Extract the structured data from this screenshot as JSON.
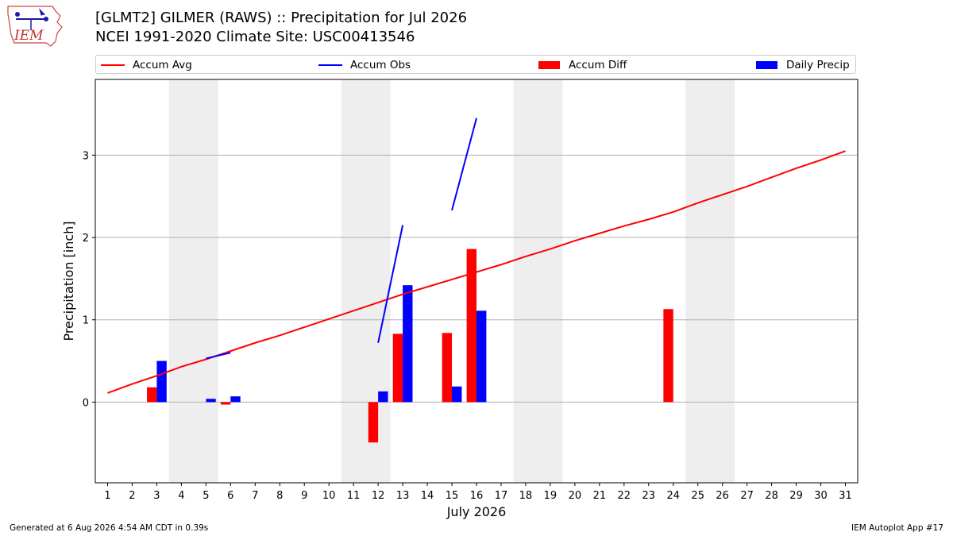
{
  "header": {
    "title_line1": "[GLMT2] GILMER (RAWS) :: Precipitation for Jul 2026",
    "title_line2": "NCEI 1991-2020 Climate Site: USC00413546",
    "logo_text": "IEM"
  },
  "legend": {
    "accum_avg": "Accum Avg",
    "accum_obs": "Accum Obs",
    "accum_diff": "Accum Diff",
    "daily_precip": "Daily Precip"
  },
  "footer": {
    "generated": "Generated at 6 Aug 2026 4:54 AM CDT in 0.39s",
    "app": "IEM Autoplot App #17"
  },
  "colors": {
    "accum_avg": "#ff0000",
    "accum_obs": "#0000ff",
    "accum_diff": "#ff0000",
    "daily_precip": "#0000ff",
    "weekend_shade": "#eeeeee",
    "grid": "#b0b0b0"
  },
  "chart_data": {
    "type": "bar",
    "xlabel": "July 2026",
    "ylabel": "Precipitation [inch]",
    "xlim": [
      0.5,
      31.5
    ],
    "ylim": [
      -0.98,
      3.92
    ],
    "x_ticks": [
      1,
      2,
      3,
      4,
      5,
      6,
      7,
      8,
      9,
      10,
      11,
      12,
      13,
      14,
      15,
      16,
      17,
      18,
      19,
      20,
      21,
      22,
      23,
      24,
      25,
      26,
      27,
      28,
      29,
      30,
      31
    ],
    "y_ticks": [
      0,
      1,
      2,
      3
    ],
    "grid": "horizontal",
    "legend_position": "top",
    "weekend_shading": [
      [
        4,
        5
      ],
      [
        11,
        12
      ],
      [
        18,
        19
      ],
      [
        25,
        26
      ]
    ],
    "series": [
      {
        "name": "Accum Avg",
        "type": "line",
        "x": [
          1,
          2,
          3,
          4,
          5,
          6,
          7,
          8,
          9,
          10,
          11,
          12,
          13,
          14,
          15,
          16,
          17,
          18,
          19,
          20,
          21,
          22,
          23,
          24,
          25,
          26,
          27,
          28,
          29,
          30,
          31
        ],
        "values": [
          0.11,
          0.22,
          0.32,
          0.43,
          0.52,
          0.62,
          0.72,
          0.81,
          0.91,
          1.01,
          1.11,
          1.21,
          1.31,
          1.4,
          1.49,
          1.58,
          1.67,
          1.77,
          1.86,
          1.96,
          2.05,
          2.14,
          2.22,
          2.31,
          2.42,
          2.52,
          2.62,
          2.73,
          2.84,
          2.94,
          3.05
        ]
      },
      {
        "name": "Accum Obs",
        "type": "line",
        "segments": [
          {
            "x": [
              5,
              6
            ],
            "values": [
              0.53,
              0.6
            ]
          },
          {
            "x": [
              12,
              13
            ],
            "values": [
              0.72,
              2.15
            ]
          },
          {
            "x": [
              15,
              16
            ],
            "values": [
              2.33,
              3.45
            ]
          }
        ]
      },
      {
        "name": "Accum Diff",
        "type": "bar",
        "x": [
          3,
          6,
          12,
          13,
          15,
          16,
          24
        ],
        "values": [
          0.18,
          -0.03,
          -0.49,
          0.83,
          0.84,
          1.86,
          1.13
        ]
      },
      {
        "name": "Daily Precip",
        "type": "bar",
        "x": [
          3,
          5,
          6,
          12,
          13,
          15,
          16
        ],
        "values": [
          0.5,
          0.04,
          0.07,
          0.13,
          1.42,
          0.19,
          1.11
        ]
      }
    ]
  }
}
